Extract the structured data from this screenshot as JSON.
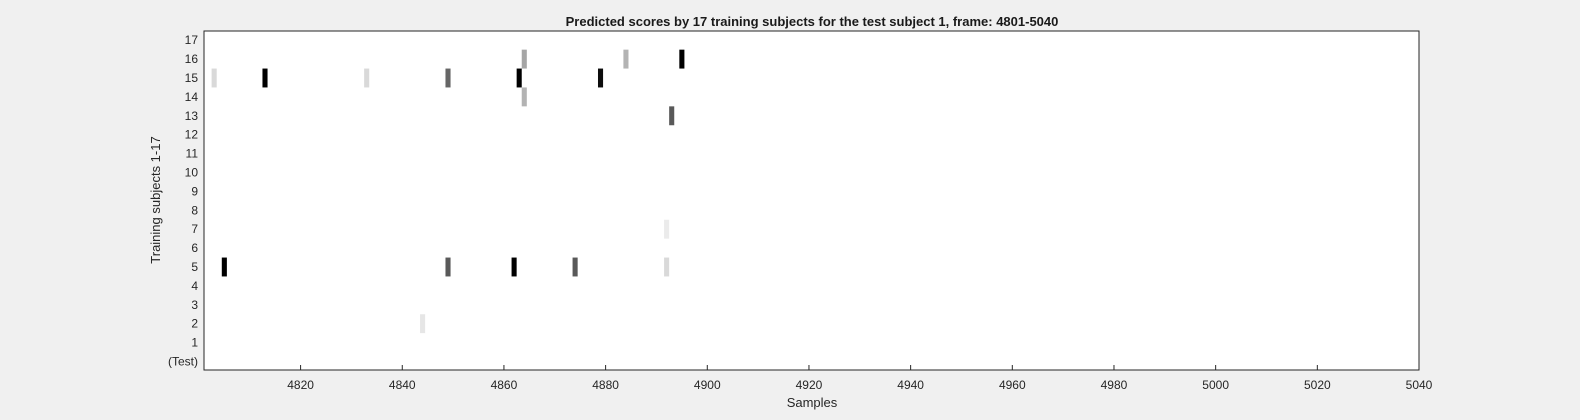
{
  "chart_data": {
    "type": "heatmap",
    "title": "Predicted scores by 17 training subjects for the test subject 1, frame: 4801-5040",
    "xlabel": "Samples",
    "ylabel": "Training subjects 1-17",
    "xlim": [
      4801,
      5040
    ],
    "xticks": [
      4820,
      4840,
      4860,
      4880,
      4900,
      4920,
      4940,
      4960,
      4980,
      5000,
      5020,
      5040
    ],
    "y_categories": [
      "(Test)",
      "1",
      "2",
      "3",
      "4",
      "5",
      "6",
      "7",
      "8",
      "9",
      "10",
      "11",
      "12",
      "13",
      "14",
      "15",
      "16",
      "17"
    ],
    "colormap": "gray-reversed",
    "background": "#ffffff",
    "cells": [
      {
        "row": "16",
        "x": 4864,
        "value": 0.35
      },
      {
        "row": "16",
        "x": 4884,
        "value": 0.3
      },
      {
        "row": "16",
        "x": 4895,
        "value": 1.0
      },
      {
        "row": "15",
        "x": 4803,
        "value": 0.15
      },
      {
        "row": "15",
        "x": 4813,
        "value": 1.0
      },
      {
        "row": "15",
        "x": 4833,
        "value": 0.15
      },
      {
        "row": "15",
        "x": 4849,
        "value": 0.6
      },
      {
        "row": "15",
        "x": 4863,
        "value": 1.0
      },
      {
        "row": "15",
        "x": 4879,
        "value": 0.95
      },
      {
        "row": "14",
        "x": 4864,
        "value": 0.3
      },
      {
        "row": "13",
        "x": 4893,
        "value": 0.65
      },
      {
        "row": "7",
        "x": 4892,
        "value": 0.08
      },
      {
        "row": "5",
        "x": 4805,
        "value": 1.0
      },
      {
        "row": "5",
        "x": 4849,
        "value": 0.65
      },
      {
        "row": "5",
        "x": 4862,
        "value": 1.0
      },
      {
        "row": "5",
        "x": 4874,
        "value": 0.65
      },
      {
        "row": "5",
        "x": 4892,
        "value": 0.15
      },
      {
        "row": "2",
        "x": 4844,
        "value": 0.1
      }
    ]
  }
}
